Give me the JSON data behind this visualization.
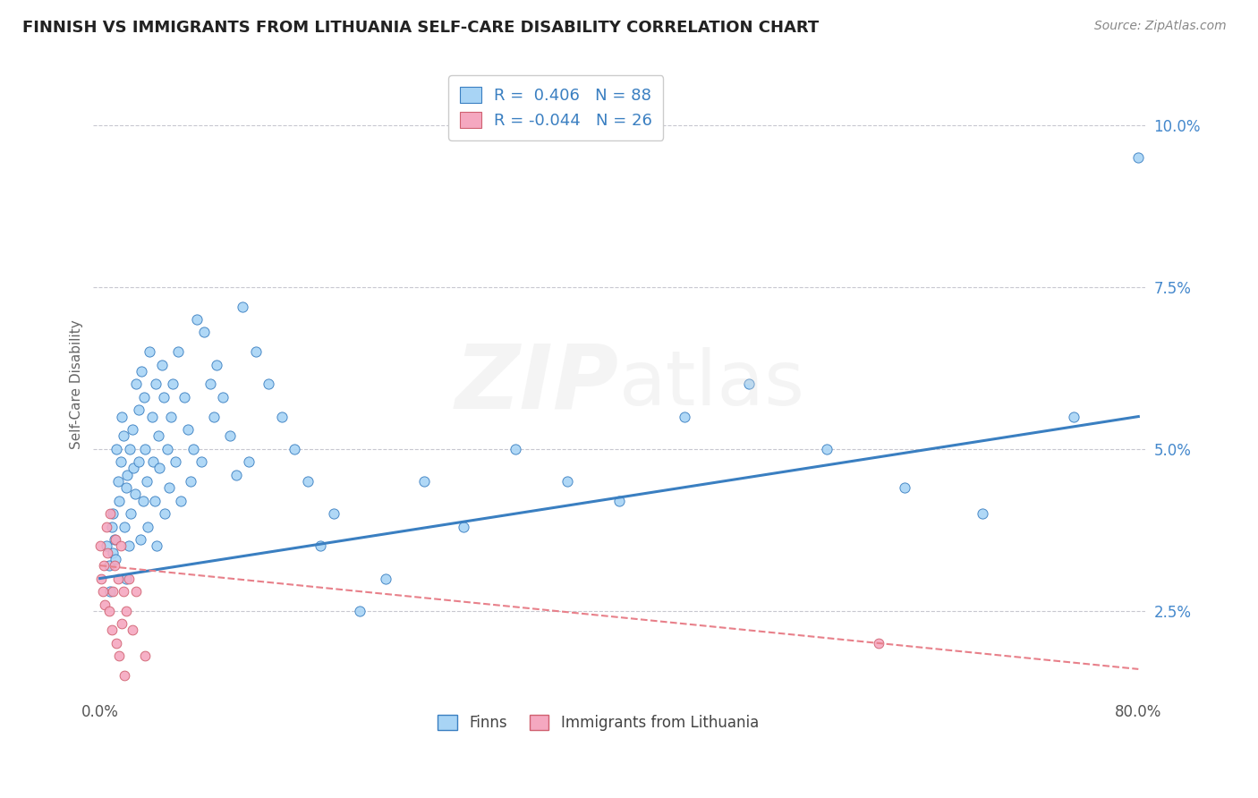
{
  "title": "FINNISH VS IMMIGRANTS FROM LITHUANIA SELF-CARE DISABILITY CORRELATION CHART",
  "source": "Source: ZipAtlas.com",
  "ylabel": "Self-Care Disability",
  "legend_labels": [
    "Finns",
    "Immigrants from Lithuania"
  ],
  "r_finns": 0.406,
  "n_finns": 88,
  "r_lithuania": -0.044,
  "n_lithuania": 26,
  "blue_color": "#A8D4F5",
  "pink_color": "#F5A8C0",
  "blue_line_color": "#3A7FC1",
  "pink_line_color": "#E8808A",
  "background_color": "#FFFFFF",
  "grid_color": "#C8C8D0",
  "title_color": "#222222",
  "legend_r_color": "#3A7FC1",
  "xlim": [
    -0.005,
    0.805
  ],
  "ylim": [
    0.012,
    0.108
  ],
  "ytick_vals": [
    0.025,
    0.05,
    0.075,
    0.1
  ],
  "ytick_labels": [
    "2.5%",
    "5.0%",
    "7.5%",
    "10.0%"
  ],
  "finns_x": [
    0.005,
    0.007,
    0.008,
    0.009,
    0.01,
    0.01,
    0.011,
    0.012,
    0.013,
    0.014,
    0.015,
    0.016,
    0.017,
    0.018,
    0.019,
    0.02,
    0.02,
    0.021,
    0.022,
    0.023,
    0.024,
    0.025,
    0.026,
    0.027,
    0.028,
    0.03,
    0.03,
    0.031,
    0.032,
    0.033,
    0.034,
    0.035,
    0.036,
    0.037,
    0.038,
    0.04,
    0.041,
    0.042,
    0.043,
    0.044,
    0.045,
    0.046,
    0.048,
    0.049,
    0.05,
    0.052,
    0.053,
    0.055,
    0.056,
    0.058,
    0.06,
    0.062,
    0.065,
    0.068,
    0.07,
    0.072,
    0.075,
    0.078,
    0.08,
    0.085,
    0.088,
    0.09,
    0.095,
    0.1,
    0.105,
    0.11,
    0.115,
    0.12,
    0.13,
    0.14,
    0.15,
    0.16,
    0.17,
    0.18,
    0.2,
    0.22,
    0.25,
    0.28,
    0.32,
    0.36,
    0.4,
    0.45,
    0.5,
    0.56,
    0.62,
    0.68,
    0.75,
    0.8
  ],
  "finns_y": [
    0.035,
    0.032,
    0.028,
    0.038,
    0.034,
    0.04,
    0.036,
    0.033,
    0.05,
    0.045,
    0.042,
    0.048,
    0.055,
    0.052,
    0.038,
    0.044,
    0.03,
    0.046,
    0.035,
    0.05,
    0.04,
    0.053,
    0.047,
    0.043,
    0.06,
    0.048,
    0.056,
    0.036,
    0.062,
    0.042,
    0.058,
    0.05,
    0.045,
    0.038,
    0.065,
    0.055,
    0.048,
    0.042,
    0.06,
    0.035,
    0.052,
    0.047,
    0.063,
    0.058,
    0.04,
    0.05,
    0.044,
    0.055,
    0.06,
    0.048,
    0.065,
    0.042,
    0.058,
    0.053,
    0.045,
    0.05,
    0.07,
    0.048,
    0.068,
    0.06,
    0.055,
    0.063,
    0.058,
    0.052,
    0.046,
    0.072,
    0.048,
    0.065,
    0.06,
    0.055,
    0.05,
    0.045,
    0.035,
    0.04,
    0.025,
    0.03,
    0.045,
    0.038,
    0.05,
    0.045,
    0.042,
    0.055,
    0.06,
    0.05,
    0.044,
    0.04,
    0.055,
    0.095
  ],
  "lithuania_x": [
    0.0,
    0.001,
    0.002,
    0.003,
    0.004,
    0.005,
    0.006,
    0.007,
    0.008,
    0.009,
    0.01,
    0.011,
    0.012,
    0.013,
    0.014,
    0.015,
    0.016,
    0.017,
    0.018,
    0.019,
    0.02,
    0.022,
    0.025,
    0.028,
    0.035,
    0.6
  ],
  "lithuania_y": [
    0.035,
    0.03,
    0.028,
    0.032,
    0.026,
    0.038,
    0.034,
    0.025,
    0.04,
    0.022,
    0.028,
    0.032,
    0.036,
    0.02,
    0.03,
    0.018,
    0.035,
    0.023,
    0.028,
    0.015,
    0.025,
    0.03,
    0.022,
    0.028,
    0.018,
    0.02
  ]
}
